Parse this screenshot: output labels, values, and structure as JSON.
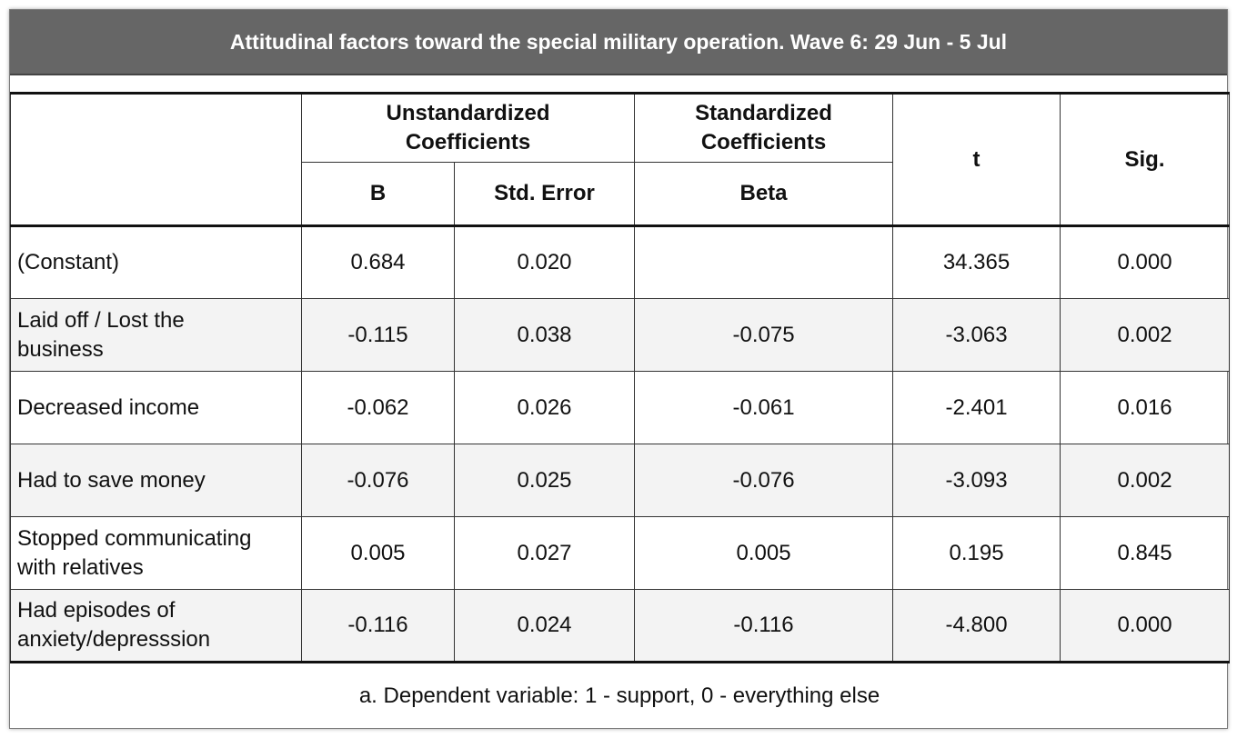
{
  "title": "Attitudinal factors toward the special military operation. Wave 6: 29 Jun - 5 Jul",
  "header": {
    "unstandardized": "Unstandardized Coefficients",
    "standardized": "Standardized Coefficients",
    "t": "t",
    "sig": "Sig.",
    "b": "B",
    "std_error": "Std. Error",
    "beta": "Beta"
  },
  "rows": [
    {
      "label": "(Constant)",
      "b": "0.684",
      "se": "0.020",
      "beta": "",
      "t": "34.365",
      "sig": "0.000"
    },
    {
      "label": "Laid off / Lost the business",
      "b": "-0.115",
      "se": "0.038",
      "beta": "-0.075",
      "t": "-3.063",
      "sig": "0.002"
    },
    {
      "label": "Decreased income",
      "b": "-0.062",
      "se": "0.026",
      "beta": "-0.061",
      "t": "-2.401",
      "sig": "0.016"
    },
    {
      "label": "Had to save money",
      "b": "-0.076",
      "se": "0.025",
      "beta": "-0.076",
      "t": "-3.093",
      "sig": "0.002"
    },
    {
      "label": "Stopped communicating with relatives",
      "b": "0.005",
      "se": "0.027",
      "beta": "0.005",
      "t": "0.195",
      "sig": "0.845"
    },
    {
      "label": "Had episodes of anxiety/depresssion",
      "b": "-0.116",
      "se": "0.024",
      "beta": "-0.116",
      "t": "-4.800",
      "sig": "0.000"
    }
  ],
  "footnote": "a. Dependent variable: 1 - support, 0 - everything else",
  "colors": {
    "title_bg": "#666666",
    "title_text": "#ffffff",
    "alt_row": "#f3f3f3"
  }
}
